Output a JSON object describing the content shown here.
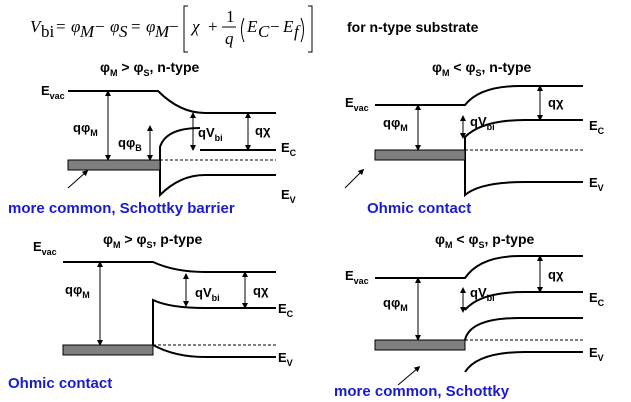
{
  "equation": {
    "lhs": "V",
    "lhs_sub": "bi",
    "eq1": "=",
    "phi_m": "φ",
    "sub_m": "M",
    "minus": "−",
    "phi_s": "φ",
    "sub_s": "S",
    "eq2": "=",
    "chi": "χ",
    "plus": "+",
    "frac_num": "1",
    "frac_den": "q",
    "ec": "E",
    "ec_sub": "C",
    "ef": "E",
    "ef_sub": "f"
  },
  "heading_right": "for n-type substrate",
  "panels": {
    "tl": {
      "title_a": "φ",
      "title_b": "M",
      "title_c": " > φ",
      "title_d": "S",
      "title_e": ", n-type",
      "caption": "more common, Schottky barrier"
    },
    "tr": {
      "title_a": "φ",
      "title_b": "M",
      "title_c": " < φ",
      "title_d": "S",
      "title_e": ", n-type",
      "caption": "Ohmic contact"
    },
    "bl": {
      "title_a": "φ",
      "title_b": "M",
      "title_c": " > φ",
      "title_d": "S",
      "title_e": ", p-type",
      "caption": "Ohmic contact"
    },
    "br": {
      "title_a": "φ",
      "title_b": "M",
      "title_c": " < φ",
      "title_d": "S",
      "title_e": ", p-type",
      "caption": "more common, Schottky"
    }
  },
  "labels": {
    "e": "E",
    "vac": "vac",
    "c": "C",
    "v": "V",
    "q_phi": "qφ",
    "m": "M",
    "b": "B",
    "qv": "qV",
    "bi": "bi",
    "q_chi": "qχ"
  },
  "colors": {
    "caption": "#1a1ad0",
    "metal": "#7f7f7f"
  }
}
